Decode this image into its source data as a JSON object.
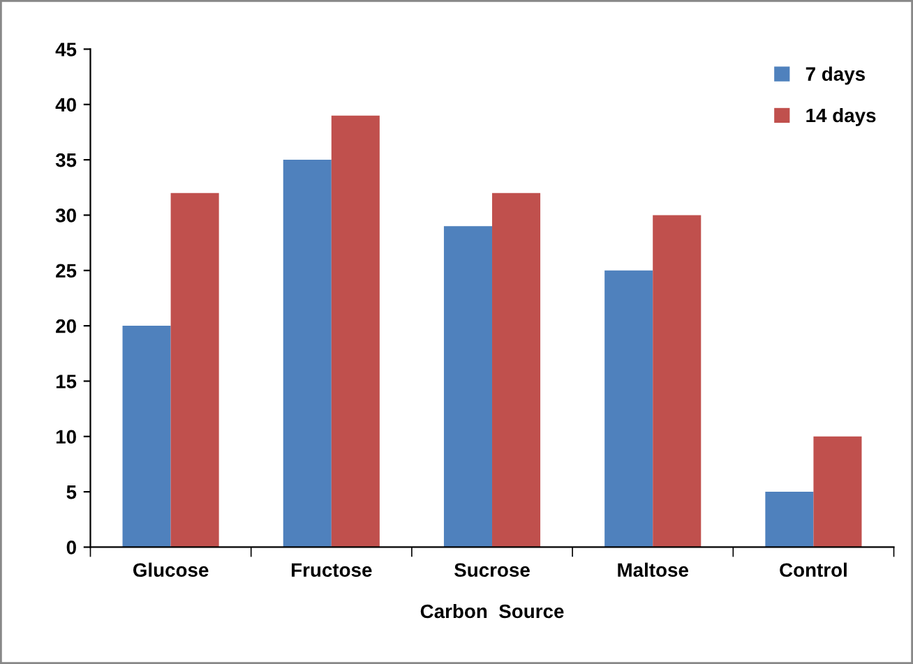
{
  "chart_data": {
    "type": "bar",
    "xlabel": "Carbon  Source",
    "categories": [
      "Glucose",
      "Fructose",
      "Sucrose",
      "Maltose",
      "Control"
    ],
    "series": [
      {
        "name": "7 days",
        "color": "#4f81bd",
        "values": [
          20,
          35,
          29,
          25,
          5
        ]
      },
      {
        "name": "14 days",
        "color": "#c0504d",
        "values": [
          32,
          39,
          32,
          30,
          10
        ]
      }
    ],
    "ylim": [
      0,
      45
    ],
    "yticks": [
      0,
      5,
      10,
      15,
      20,
      25,
      30,
      35,
      40,
      45
    ],
    "grid": false,
    "legend": "top right"
  }
}
